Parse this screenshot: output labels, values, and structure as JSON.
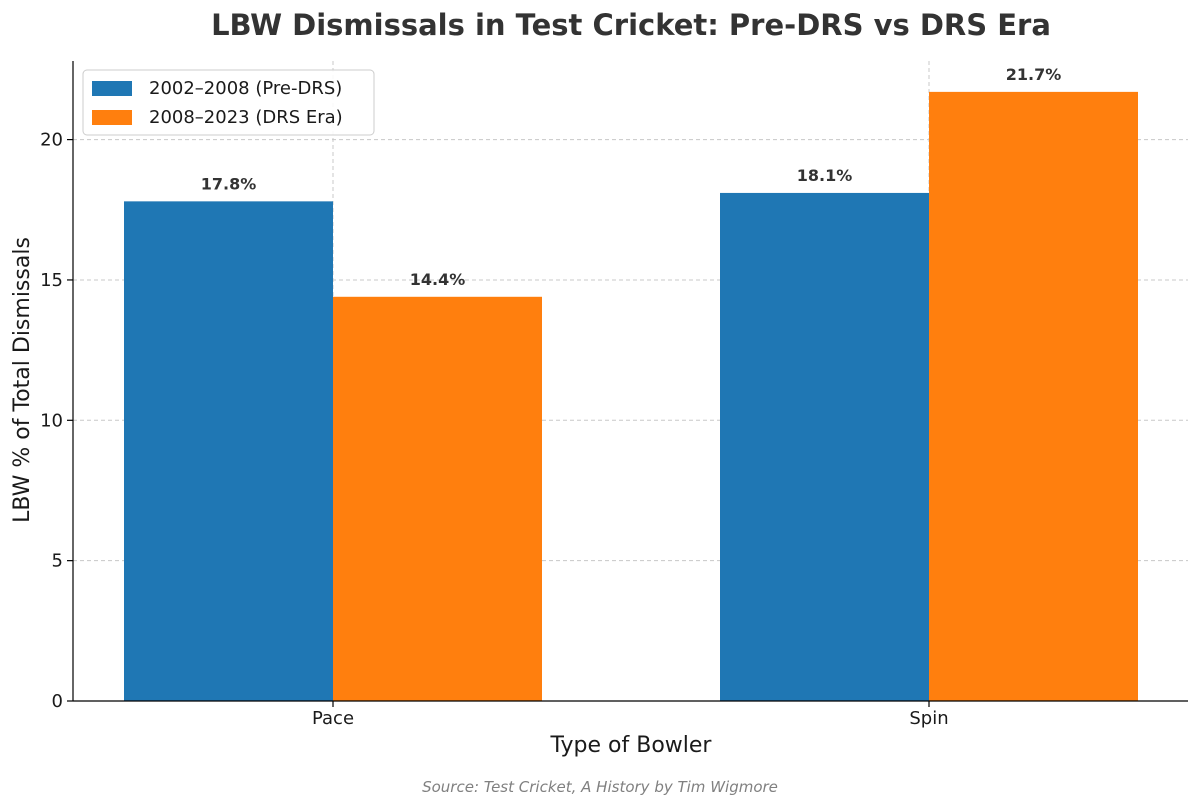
{
  "chart_data": {
    "type": "bar",
    "title": "LBW Dismissals in Test Cricket: Pre-DRS vs DRS Era",
    "xlabel": "Type of Bowler",
    "ylabel": "LBW % of Total Dismissals",
    "categories": [
      "Pace",
      "Spin"
    ],
    "series": [
      {
        "name": "2002–2008 (Pre-DRS)",
        "values": [
          17.8,
          18.1
        ],
        "labels": [
          "17.8%",
          "18.1%"
        ],
        "color": "#1f77b4"
      },
      {
        "name": "2008–2023 (DRS Era)",
        "values": [
          14.4,
          21.7
        ],
        "labels": [
          "14.4%",
          "21.7%"
        ],
        "color": "#ff7f0e"
      }
    ],
    "ylim": [
      0,
      22.8
    ],
    "yticks": [
      0,
      5,
      10,
      15,
      20
    ],
    "grid": true,
    "legend_position": "top-left",
    "source": "Source: Test Cricket, A History by Tim Wigmore"
  }
}
